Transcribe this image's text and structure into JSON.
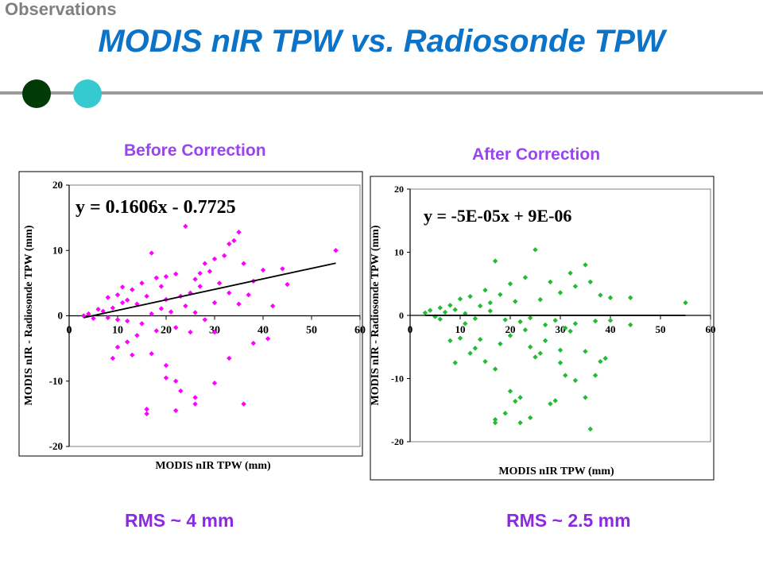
{
  "header": {
    "section": "Observations",
    "title": "MODIS nIR TPW vs. Radiosonde TPW",
    "bullet_colors": [
      "#003b05",
      "#35c9d0"
    ]
  },
  "panels": [
    {
      "subtitle": "Before Correction",
      "rms": "RMS ~ 4 mm",
      "marker_color": "#ff00ff"
    },
    {
      "subtitle": "After Correction",
      "rms": "RMS ~ 2.5 mm",
      "marker_color": "#22bb33"
    }
  ],
  "chart_data": [
    {
      "type": "scatter",
      "title": "",
      "xlabel": "MODIS nIR TPW (mm)",
      "ylabel": "MODIS nIR - Radiosonde TPW (mm)",
      "xlim": [
        0,
        60
      ],
      "ylim": [
        -20,
        20
      ],
      "x_ticks": [
        "0",
        "10",
        "20",
        "30",
        "40",
        "50",
        "60"
      ],
      "y_ticks": [
        "20",
        "10",
        "0",
        "-10",
        "-20"
      ],
      "grid": false,
      "marker_color": "#ff00ff",
      "trendline": {
        "equation": "y = 0.1606x - 0.7725",
        "slope": 0.1606,
        "intercept": -0.7725,
        "x_range": [
          3,
          55
        ]
      },
      "points": [
        [
          24,
          13.7
        ],
        [
          35,
          12.8
        ],
        [
          34,
          11.5
        ],
        [
          33,
          11.0
        ],
        [
          55,
          10.0
        ],
        [
          17,
          9.6
        ],
        [
          32,
          9.2
        ],
        [
          30,
          8.7
        ],
        [
          28,
          8.0
        ],
        [
          36,
          8.0
        ],
        [
          22,
          6.4
        ],
        [
          18,
          5.8
        ],
        [
          15,
          5.0
        ],
        [
          26,
          5.6
        ],
        [
          40,
          7.0
        ],
        [
          44,
          7.2
        ],
        [
          45,
          4.8
        ],
        [
          38,
          5.3
        ],
        [
          13,
          4.0
        ],
        [
          20,
          6.0
        ],
        [
          25,
          3.5
        ],
        [
          23,
          3.0
        ],
        [
          27,
          4.5
        ],
        [
          31,
          5.0
        ],
        [
          33,
          3.5
        ],
        [
          37,
          3.2
        ],
        [
          30,
          2.0
        ],
        [
          35,
          1.8
        ],
        [
          42,
          1.5
        ],
        [
          20,
          2.5
        ],
        [
          16,
          3.0
        ],
        [
          12,
          2.4
        ],
        [
          11,
          2.0
        ],
        [
          14,
          1.8
        ],
        [
          9,
          1.2
        ],
        [
          7,
          0.7
        ],
        [
          6,
          1.0
        ],
        [
          4,
          0.3
        ],
        [
          3,
          0.0
        ],
        [
          5,
          -0.4
        ],
        [
          8,
          -0.3
        ],
        [
          10,
          -0.6
        ],
        [
          12,
          -0.8
        ],
        [
          15,
          -1.2
        ],
        [
          17,
          0.3
        ],
        [
          19,
          1.1
        ],
        [
          21,
          0.6
        ],
        [
          24,
          1.5
        ],
        [
          26,
          0.5
        ],
        [
          28,
          -0.6
        ],
        [
          22,
          -1.8
        ],
        [
          18,
          -2.3
        ],
        [
          14,
          -3.0
        ],
        [
          12,
          -4.0
        ],
        [
          10,
          -4.8
        ],
        [
          13,
          -6.0
        ],
        [
          17,
          -5.8
        ],
        [
          9,
          -6.5
        ],
        [
          20,
          -7.6
        ],
        [
          22,
          -10.0
        ],
        [
          20,
          -9.5
        ],
        [
          23,
          -11.5
        ],
        [
          26,
          -12.5
        ],
        [
          26,
          -13.5
        ],
        [
          30,
          -10.3
        ],
        [
          16,
          -15.0
        ],
        [
          16,
          -14.3
        ],
        [
          22,
          -14.5
        ],
        [
          36,
          -13.5
        ],
        [
          33,
          -6.5
        ],
        [
          38,
          -4.2
        ],
        [
          41,
          -3.5
        ],
        [
          30,
          -2.5
        ],
        [
          25,
          -2.5
        ],
        [
          8,
          2.8
        ],
        [
          10,
          3.2
        ],
        [
          11,
          4.4
        ],
        [
          27,
          6.5
        ],
        [
          29,
          6.8
        ],
        [
          19,
          4.5
        ]
      ]
    },
    {
      "type": "scatter",
      "title": "",
      "xlabel": "MODIS nIR TPW (mm)",
      "ylabel": "MODIS nIR - Radiosonde TPW (mm)",
      "xlim": [
        0,
        60
      ],
      "ylim": [
        -20,
        20
      ],
      "x_ticks": [
        "0",
        "10",
        "20",
        "30",
        "40",
        "50",
        "60"
      ],
      "y_ticks": [
        "20",
        "10",
        "0",
        "-10",
        "-20"
      ],
      "grid": false,
      "marker_color": "#22bb33",
      "trendline": {
        "equation": "y = -5E-05x + 9E-06",
        "slope": -5e-05,
        "intercept": 9e-06,
        "x_range": [
          3,
          55
        ]
      },
      "points": [
        [
          25,
          10.4
        ],
        [
          17,
          8.6
        ],
        [
          35,
          8.0
        ],
        [
          32,
          6.7
        ],
        [
          23,
          6.0
        ],
        [
          28,
          5.3
        ],
        [
          20,
          5.0
        ],
        [
          36,
          5.3
        ],
        [
          33,
          4.6
        ],
        [
          30,
          3.6
        ],
        [
          38,
          3.2
        ],
        [
          40,
          2.8
        ],
        [
          44,
          2.8
        ],
        [
          55,
          2.0
        ],
        [
          15,
          4.0
        ],
        [
          12,
          3.0
        ],
        [
          10,
          2.6
        ],
        [
          18,
          3.3
        ],
        [
          21,
          2.2
        ],
        [
          26,
          2.5
        ],
        [
          8,
          1.6
        ],
        [
          6,
          1.2
        ],
        [
          4,
          0.8
        ],
        [
          3,
          0.4
        ],
        [
          5,
          -0.2
        ],
        [
          7,
          0.5
        ],
        [
          9,
          0.9
        ],
        [
          11,
          0.3
        ],
        [
          13,
          -0.5
        ],
        [
          16,
          0.7
        ],
        [
          19,
          -0.7
        ],
        [
          22,
          -1.0
        ],
        [
          24,
          -0.4
        ],
        [
          27,
          -1.5
        ],
        [
          29,
          -0.8
        ],
        [
          31,
          -2.0
        ],
        [
          33,
          -1.3
        ],
        [
          37,
          -0.9
        ],
        [
          40,
          -0.8
        ],
        [
          44,
          -1.5
        ],
        [
          8,
          -4.0
        ],
        [
          10,
          -3.6
        ],
        [
          14,
          -3.8
        ],
        [
          18,
          -4.5
        ],
        [
          20,
          -3.2
        ],
        [
          12,
          -6.0
        ],
        [
          15,
          -7.3
        ],
        [
          9,
          -7.5
        ],
        [
          17,
          -8.5
        ],
        [
          24,
          -5.0
        ],
        [
          26,
          -6.0
        ],
        [
          30,
          -7.5
        ],
        [
          35,
          -5.7
        ],
        [
          37,
          -9.5
        ],
        [
          38,
          -7.3
        ],
        [
          39,
          -6.8
        ],
        [
          20,
          -12.0
        ],
        [
          22,
          -13.0
        ],
        [
          21,
          -13.6
        ],
        [
          19,
          -15.5
        ],
        [
          17,
          -16.5
        ],
        [
          17,
          -17.0
        ],
        [
          22,
          -17.0
        ],
        [
          24,
          -16.2
        ],
        [
          28,
          -14.0
        ],
        [
          29,
          -13.5
        ],
        [
          33,
          -10.3
        ],
        [
          35,
          -13.0
        ],
        [
          36,
          -18.0
        ],
        [
          30,
          -5.5
        ],
        [
          27,
          -4.0
        ],
        [
          23,
          -2.3
        ],
        [
          11,
          -1.3
        ],
        [
          14,
          1.5
        ],
        [
          16,
          2.0
        ],
        [
          6,
          -0.6
        ],
        [
          25,
          -6.6
        ],
        [
          31,
          -9.5
        ],
        [
          13,
          -5.2
        ],
        [
          32,
          -2.5
        ]
      ]
    }
  ]
}
